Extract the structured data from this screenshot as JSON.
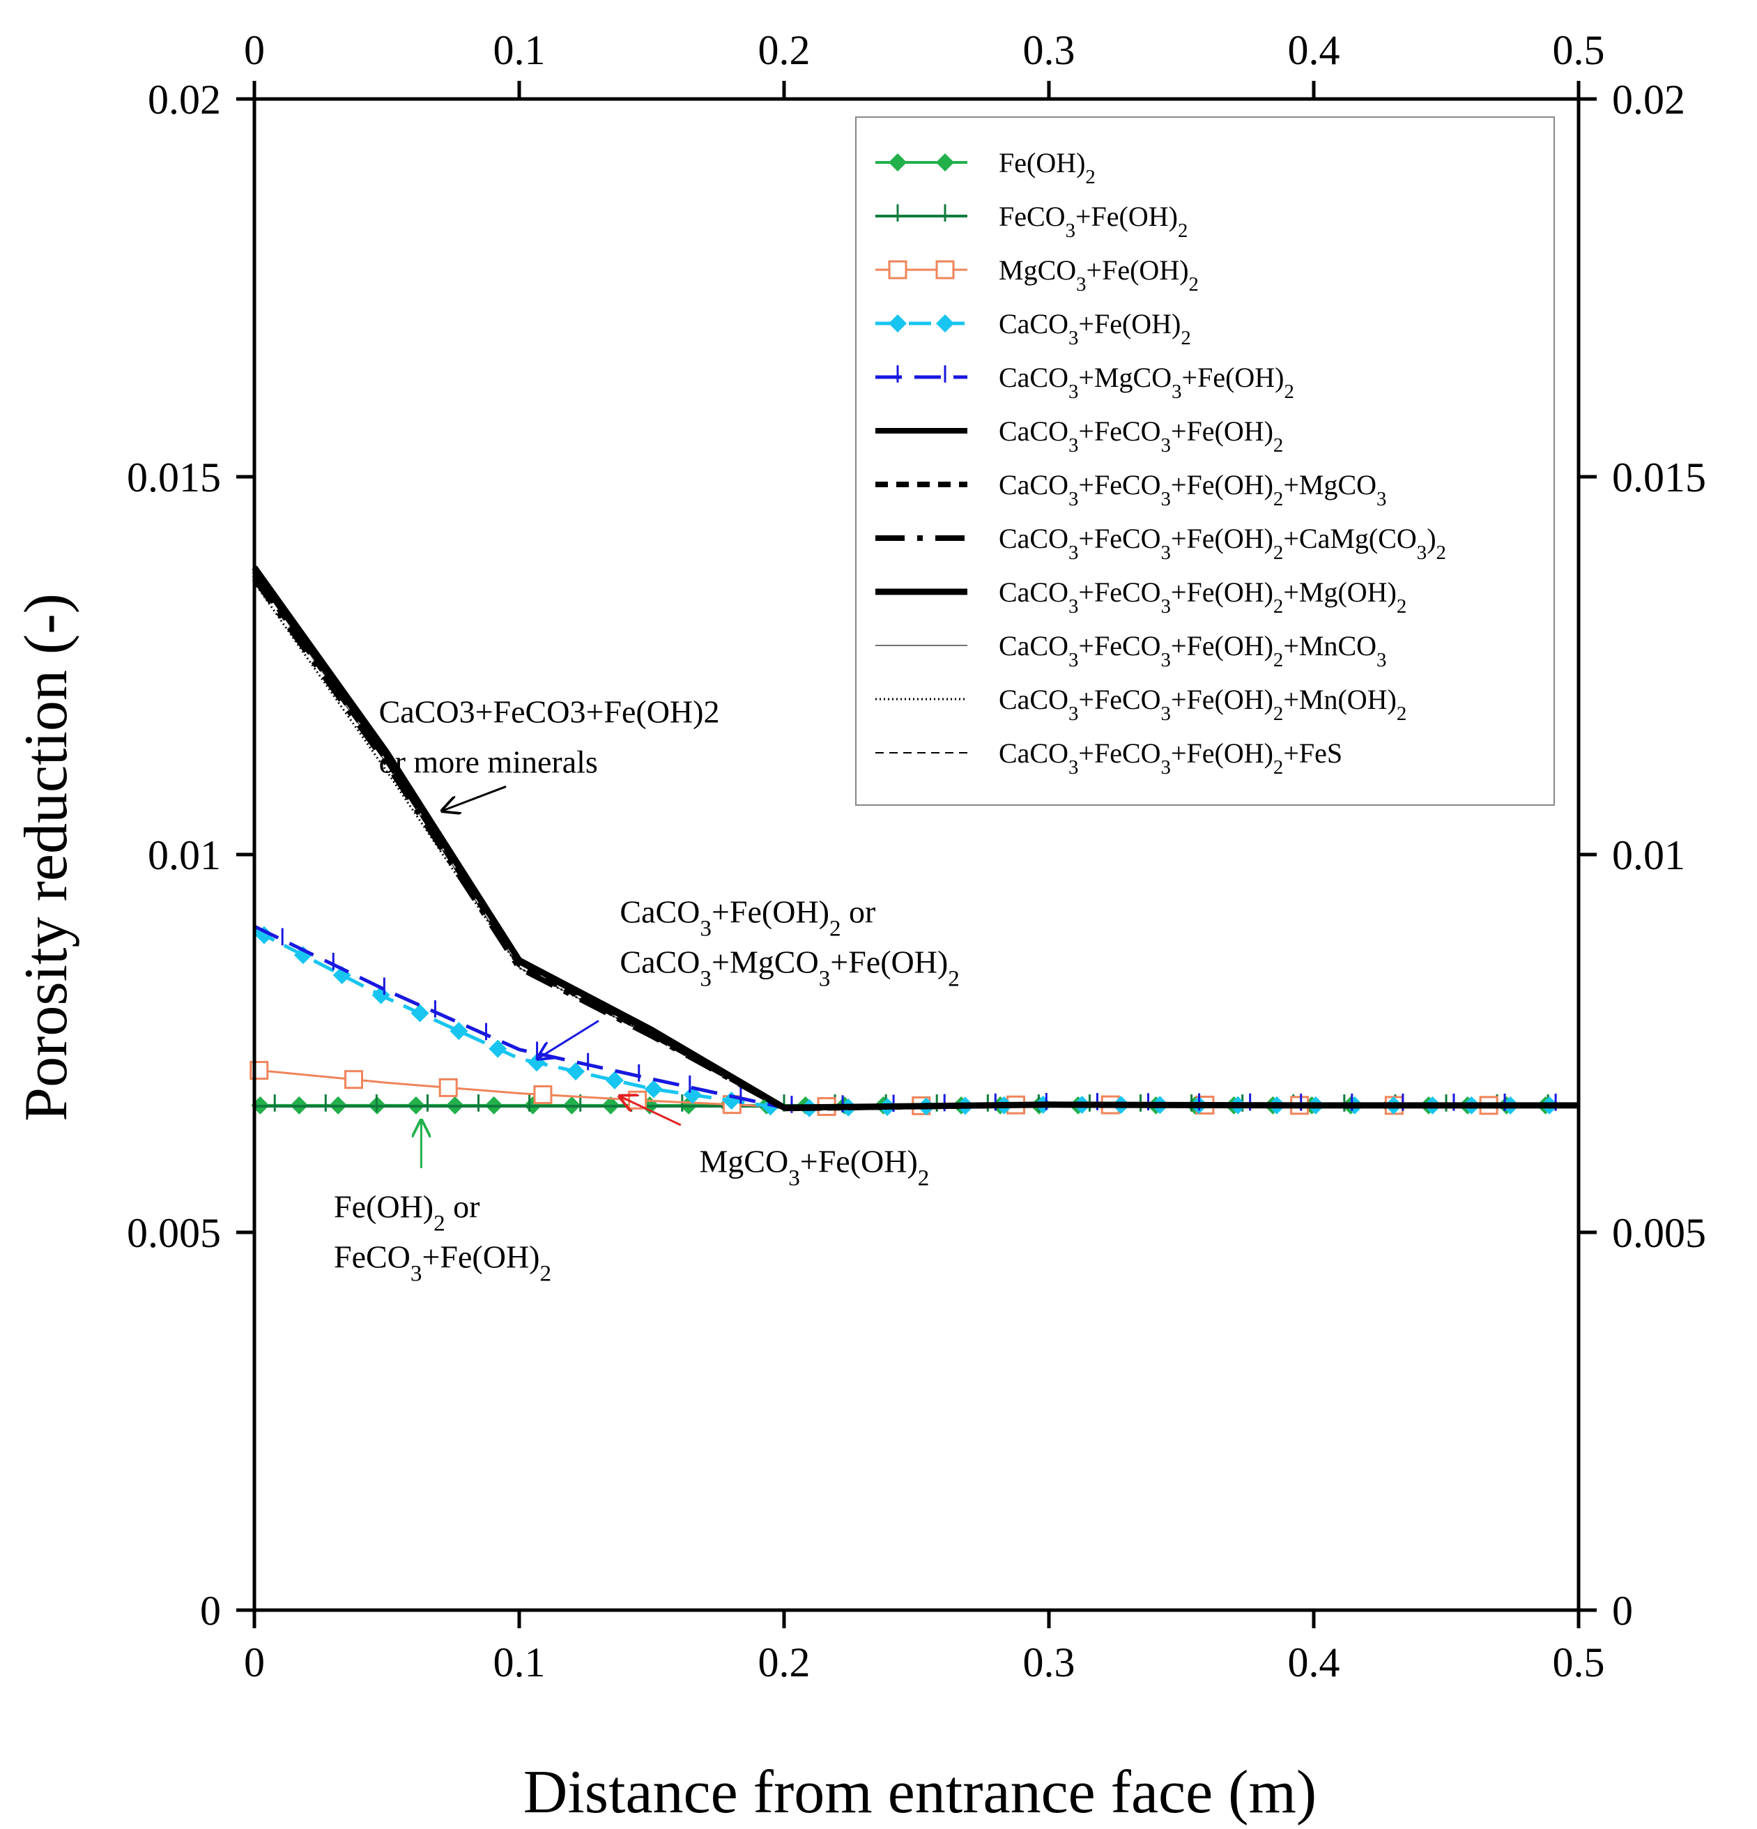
{
  "chart_data": {
    "type": "line",
    "title": "",
    "xlabel": "Distance from entrance face (m)",
    "ylabel": "Porosity reduction (-)",
    "xlim": [
      0,
      0.5
    ],
    "ylim": [
      0,
      0.02
    ],
    "x_ticks": [
      0,
      0.1,
      0.2,
      0.3,
      0.4,
      0.5
    ],
    "x_tick_labels": [
      "0",
      "0.1",
      "0.2",
      "0.3",
      "0.4",
      "0.5"
    ],
    "y_ticks": [
      0,
      0.005,
      0.01,
      0.015,
      0.02
    ],
    "y_tick_labels": [
      "0",
      "0.005",
      "0.01",
      "0.015",
      "0.02"
    ],
    "grid": false,
    "legend_position": "top-right",
    "series": [
      {
        "name": "Fe(OH)2",
        "legend_label": [
          {
            "t": "Fe(OH)"
          },
          {
            "t": "2",
            "sub": true
          }
        ],
        "color": "#22b04b",
        "dash": "",
        "width": 4,
        "marker": "diamond",
        "marker_color": "#22b04b",
        "x": [
          0,
          0.5
        ],
        "y": [
          0.00668,
          0.00668
        ]
      },
      {
        "name": "FeCO3+Fe(OH)2",
        "legend_label": [
          {
            "t": "FeCO"
          },
          {
            "t": "3",
            "sub": true
          },
          {
            "t": "+Fe(OH)"
          },
          {
            "t": "2",
            "sub": true
          }
        ],
        "color": "#107c3c",
        "dash": "",
        "width": 4,
        "marker": "tick",
        "marker_color": "#107c3c",
        "x": [
          0,
          0.5
        ],
        "y": [
          0.00667,
          0.00667
        ]
      },
      {
        "name": "MgCO3+Fe(OH)2",
        "legend_label": [
          {
            "t": " MgCO"
          },
          {
            "t": "3",
            "sub": true
          },
          {
            "t": "+Fe(OH)"
          },
          {
            "t": "2",
            "sub": true
          }
        ],
        "color": "#f0845a",
        "dash": "",
        "width": 3,
        "marker": "square",
        "marker_color": "#f0845a",
        "x": [
          0,
          0.05,
          0.1,
          0.15,
          0.2,
          0.3,
          0.4,
          0.5
        ],
        "y": [
          0.00715,
          0.00698,
          0.00684,
          0.00674,
          0.00666,
          0.00669,
          0.00668,
          0.00668
        ]
      },
      {
        "name": "CaCO3+Fe(OH)2",
        "legend_label": [
          {
            "t": "CaCO"
          },
          {
            "t": "3",
            "sub": true
          },
          {
            "t": "+Fe(OH)"
          },
          {
            "t": "2",
            "sub": true
          }
        ],
        "color": "#18c5f0",
        "dash": "32 16",
        "width": 5,
        "marker": "diamond",
        "marker_color": "#18c5f0",
        "x": [
          0,
          0.05,
          0.1,
          0.15,
          0.2,
          0.3,
          0.4,
          0.5
        ],
        "y": [
          0.009,
          0.0081,
          0.0073,
          0.0069,
          0.00664,
          0.00669,
          0.00668,
          0.00668
        ]
      },
      {
        "name": "CaCO3+MgCO3+Fe(OH)2",
        "legend_label": [
          {
            "t": "CaCO"
          },
          {
            "t": "3",
            "sub": true
          },
          {
            "t": "+MgCO"
          },
          {
            "t": "3",
            "sub": true
          },
          {
            "t": "+Fe(OH)"
          },
          {
            "t": "2",
            "sub": true
          }
        ],
        "color": "#1818e0",
        "dash": "38 18",
        "width": 5,
        "marker": "tick",
        "marker_color": "#1818e0",
        "x": [
          0,
          0.05,
          0.1,
          0.15,
          0.2,
          0.3,
          0.4,
          0.5
        ],
        "y": [
          0.00905,
          0.0082,
          0.00742,
          0.00703,
          0.00665,
          0.00669,
          0.00668,
          0.00668
        ]
      },
      {
        "name": "CaCO3+FeCO3+Fe(OH)2",
        "legend_label": [
          {
            "t": "CaCO"
          },
          {
            "t": "3",
            "sub": true
          },
          {
            "t": "+FeCO"
          },
          {
            "t": "3",
            "sub": true
          },
          {
            "t": "+Fe(OH)"
          },
          {
            "t": "2",
            "sub": true
          }
        ],
        "color": "#000000",
        "dash": "",
        "width": 8,
        "marker": "none",
        "x": [
          0,
          0.05,
          0.1,
          0.15,
          0.2,
          0.3,
          0.4,
          0.5
        ],
        "y": [
          0.01375,
          0.0113,
          0.0086,
          0.00765,
          0.00665,
          0.00669,
          0.00668,
          0.00668
        ]
      },
      {
        "name": "CaCO3+FeCO3+Fe(OH)2+MgCO3",
        "legend_label": [
          {
            "t": "CaCO"
          },
          {
            "t": "3",
            "sub": true
          },
          {
            "t": "+FeCO"
          },
          {
            "t": "3",
            "sub": true
          },
          {
            "t": "+Fe(OH)"
          },
          {
            "t": "2",
            "sub": true
          },
          {
            "t": "+MgCO"
          },
          {
            "t": "3",
            "sub": true
          }
        ],
        "color": "#000000",
        "dash": "18 12",
        "width": 8,
        "marker": "none",
        "x": [
          0,
          0.05,
          0.1,
          0.15,
          0.2,
          0.3,
          0.4,
          0.5
        ],
        "y": [
          0.0137,
          0.01125,
          0.00855,
          0.00762,
          0.00664,
          0.00669,
          0.00668,
          0.00668
        ]
      },
      {
        "name": "CaCO3+FeCO3+Fe(OH)2+CaMg(CO3)2",
        "legend_label": [
          {
            "t": "CaCO"
          },
          {
            "t": "3",
            "sub": true
          },
          {
            "t": "+FeCO"
          },
          {
            "t": "3",
            "sub": true
          },
          {
            "t": "+Fe(OH)"
          },
          {
            "t": "2",
            "sub": true
          },
          {
            "t": "+CaMg(CO"
          },
          {
            "t": "3",
            "sub": true
          },
          {
            "t": ")"
          },
          {
            "t": "2",
            "sub": true
          }
        ],
        "color": "#000000",
        "dash": "42 18 8 18",
        "width": 8,
        "marker": "none",
        "x": [
          0,
          0.05,
          0.1,
          0.15,
          0.2,
          0.3,
          0.4,
          0.5
        ],
        "y": [
          0.01365,
          0.0112,
          0.0085,
          0.0076,
          0.00664,
          0.00669,
          0.00668,
          0.00668
        ]
      },
      {
        "name": "CaCO3+FeCO3+Fe(OH)2+Mg(OH)2",
        "legend_label": [
          {
            "t": "CaCO"
          },
          {
            "t": "3",
            "sub": true
          },
          {
            "t": "+FeCO"
          },
          {
            "t": "3",
            "sub": true
          },
          {
            "t": "+Fe(OH)"
          },
          {
            "t": "2",
            "sub": true
          },
          {
            "t": "+Mg(OH)"
          },
          {
            "t": "2",
            "sub": true
          }
        ],
        "color": "#000000",
        "dash": "",
        "width": 9,
        "marker": "none",
        "x": [
          0,
          0.05,
          0.1,
          0.15,
          0.2,
          0.3,
          0.4,
          0.5
        ],
        "y": [
          0.0138,
          0.01135,
          0.0086,
          0.00768,
          0.00665,
          0.00669,
          0.00668,
          0.00668
        ]
      },
      {
        "name": "CaCO3+FeCO3+Fe(OH)2+MnCO3",
        "legend_label": [
          {
            "t": "CaCO"
          },
          {
            "t": "3",
            "sub": true
          },
          {
            "t": "+FeCO"
          },
          {
            "t": "3",
            "sub": true
          },
          {
            "t": "+Fe(OH)"
          },
          {
            "t": "2",
            "sub": true
          },
          {
            "t": "+MnCO"
          },
          {
            "t": "3",
            "sub": true
          }
        ],
        "color": "#444444",
        "dash": "",
        "width": 1.5,
        "marker": "none",
        "x": [
          0,
          0.05,
          0.1,
          0.15,
          0.2,
          0.3,
          0.4,
          0.5
        ],
        "y": [
          0.0137,
          0.0112,
          0.0085,
          0.0076,
          0.00664,
          0.00669,
          0.00668,
          0.00668
        ]
      },
      {
        "name": "CaCO3+FeCO3+Fe(OH)2+Mn(OH)2",
        "legend_label": [
          {
            "t": "CaCO"
          },
          {
            "t": "3",
            "sub": true
          },
          {
            "t": "+FeCO"
          },
          {
            "t": "3",
            "sub": true
          },
          {
            "t": "+Fe(OH)"
          },
          {
            "t": "2",
            "sub": true
          },
          {
            "t": "+Mn(OH)"
          },
          {
            "t": "2",
            "sub": true
          }
        ],
        "color": "#000000",
        "dash": "2 4",
        "width": 3,
        "marker": "none",
        "x": [
          0,
          0.05,
          0.1,
          0.15,
          0.2,
          0.3,
          0.4,
          0.5
        ],
        "y": [
          0.0136,
          0.0111,
          0.0085,
          0.0076,
          0.00664,
          0.00669,
          0.00668,
          0.00668
        ]
      },
      {
        "name": "CaCO3+FeCO3+Fe(OH)2+FeS",
        "legend_label": [
          {
            "t": "CaCO"
          },
          {
            "t": "3",
            "sub": true
          },
          {
            "t": "+FeCO"
          },
          {
            "t": "3",
            "sub": true
          },
          {
            "t": "+Fe(OH)"
          },
          {
            "t": "2",
            "sub": true
          },
          {
            "t": "+FeS"
          }
        ],
        "color": "#000000",
        "dash": "12 8",
        "width": 2,
        "marker": "none",
        "x": [
          0,
          0.05,
          0.1,
          0.15,
          0.2,
          0.3,
          0.4,
          0.5
        ],
        "y": [
          0.01372,
          0.01128,
          0.00855,
          0.00762,
          0.00664,
          0.00669,
          0.00668,
          0.00668
        ]
      }
    ],
    "annotations": [
      {
        "id": "annot-calcite-siderite",
        "lines": [
          [
            {
              "t": "CaCO3+FeCO3+Fe(OH)2"
            }
          ],
          [
            {
              "t": "or more minerals"
            }
          ]
        ],
        "color": "#000000",
        "text_xy": [
          0.047,
          0.01175
        ],
        "arrow_from": [
          0.095,
          0.0109
        ],
        "arrow_to": [
          0.071,
          0.01058
        ]
      },
      {
        "id": "annot-calcite",
        "lines": [
          [
            {
              "t": "CaCO"
            },
            {
              "t": "3",
              "sub": true
            },
            {
              "t": "+Fe(OH)"
            },
            {
              "t": "2",
              "sub": true
            },
            {
              "t": " or"
            }
          ],
          [
            {
              "t": "CaCO"
            },
            {
              "t": "3",
              "sub": true
            },
            {
              "t": "+MgCO"
            },
            {
              "t": "3",
              "sub": true
            },
            {
              "t": "+Fe(OH)"
            },
            {
              "t": "2",
              "sub": true
            }
          ]
        ],
        "color": "#1818e0",
        "text_xy": [
          0.138,
          0.0091
        ],
        "arrow_from": [
          0.13,
          0.0078
        ],
        "arrow_to": [
          0.107,
          0.0073
        ]
      },
      {
        "id": "annot-magnesite",
        "lines": [
          [
            {
              "t": "MgCO"
            },
            {
              "t": "3",
              "sub": true
            },
            {
              "t": "+Fe(OH)"
            },
            {
              "t": "2",
              "sub": true
            }
          ]
        ],
        "color": "#e02020",
        "text_xy": [
          0.168,
          0.0058
        ],
        "arrow_from": [
          0.161,
          0.00642
        ],
        "arrow_to": [
          0.138,
          0.0068
        ]
      },
      {
        "id": "annot-fe-hydroxide",
        "lines": [
          [
            {
              "t": "Fe(OH)"
            },
            {
              "t": "2",
              "sub": true
            },
            {
              "t": " or"
            }
          ],
          [
            {
              "t": "FeCO"
            },
            {
              "t": "3",
              "sub": true
            },
            {
              "t": "+Fe(OH)"
            },
            {
              "t": "2",
              "sub": true
            }
          ]
        ],
        "color": "#22b04b",
        "text_xy": [
          0.03,
          0.0052
        ],
        "arrow_from": [
          0.063,
          0.00585
        ],
        "arrow_to": [
          0.063,
          0.00648
        ]
      }
    ]
  }
}
